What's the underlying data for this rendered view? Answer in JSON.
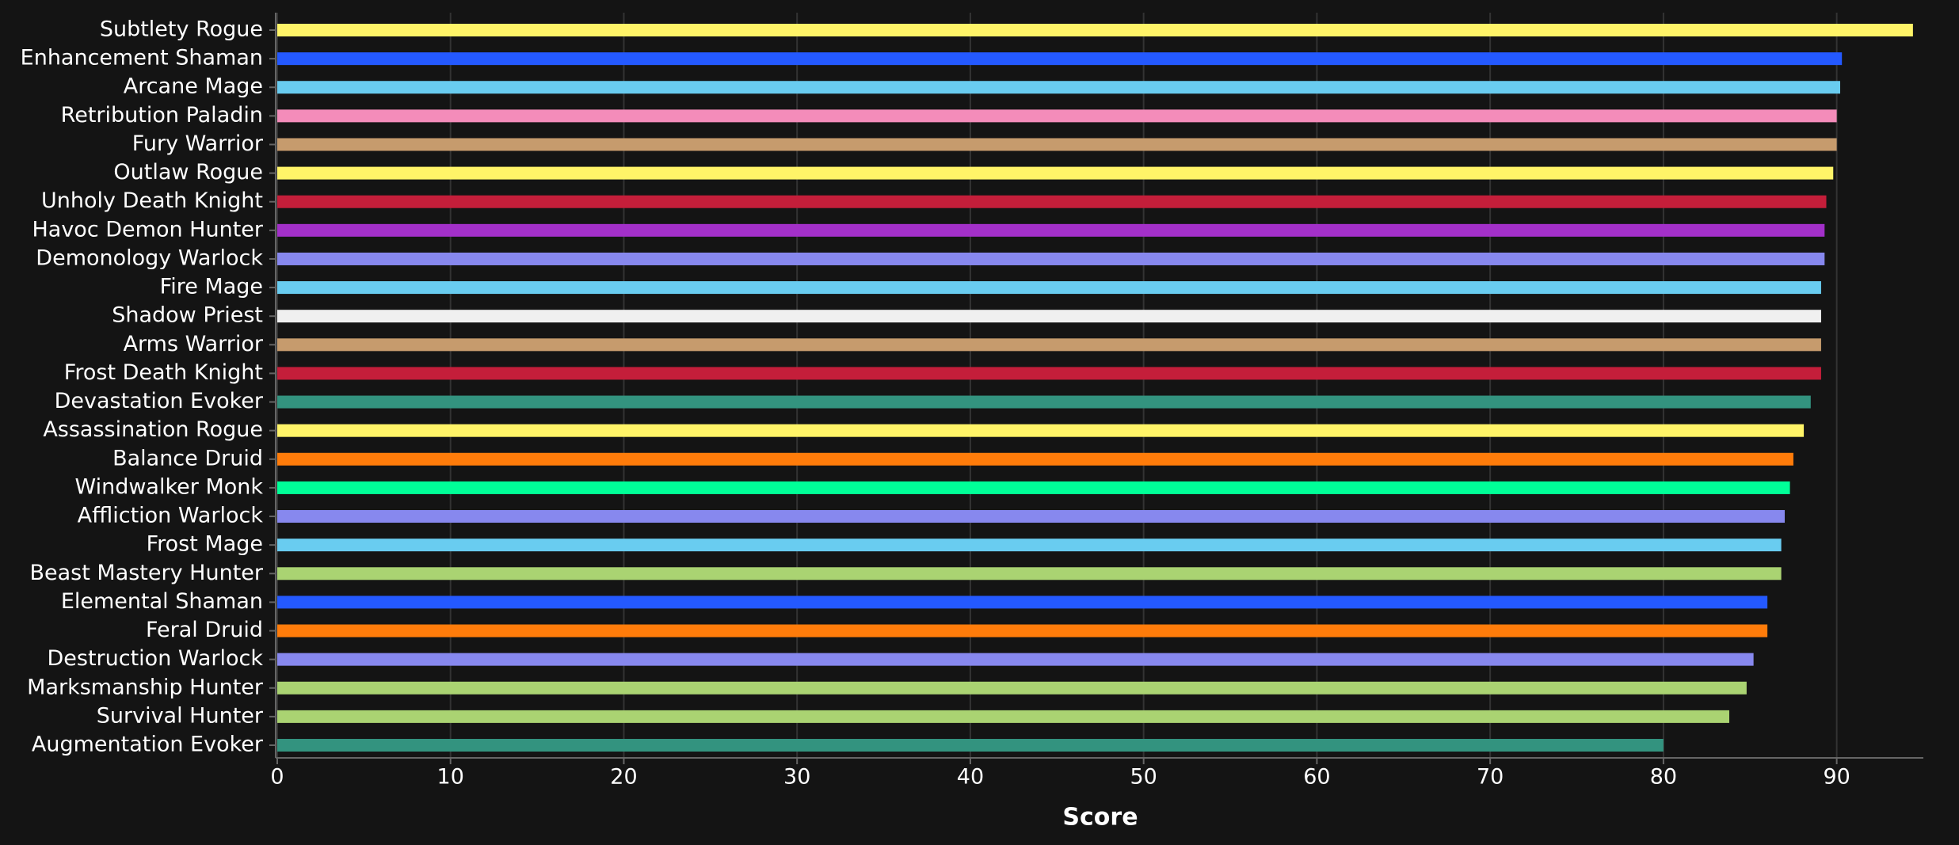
{
  "chart_data": {
    "type": "barh",
    "xlabel": "Score",
    "categories": [
      "Subtlety Rogue",
      "Enhancement Shaman",
      "Arcane Mage",
      "Retribution Paladin",
      "Fury Warrior",
      "Outlaw Rogue",
      "Unholy Death Knight",
      "Havoc Demon Hunter",
      "Demonology Warlock",
      "Fire Mage",
      "Shadow Priest",
      "Arms Warrior",
      "Frost Death Knight",
      "Devastation Evoker",
      "Assassination Rogue",
      "Balance Druid",
      "Windwalker Monk",
      "Affliction Warlock",
      "Frost Mage",
      "Beast Mastery Hunter",
      "Elemental Shaman",
      "Feral Druid",
      "Destruction Warlock",
      "Marksmanship Hunter",
      "Survival Hunter",
      "Augmentation Evoker"
    ],
    "values": [
      94.4,
      90.3,
      90.2,
      90.0,
      90.0,
      89.8,
      89.4,
      89.3,
      89.3,
      89.1,
      89.1,
      89.1,
      89.1,
      88.5,
      88.1,
      87.5,
      87.3,
      87.0,
      86.8,
      86.8,
      86.0,
      86.0,
      85.2,
      84.8,
      83.8,
      80.0
    ],
    "colors": [
      "#fff468",
      "#2459ff",
      "#69ccf0",
      "#f48cba",
      "#c69b6d",
      "#fff468",
      "#c41e3a",
      "#a330c9",
      "#8788ee",
      "#69ccf0",
      "#f0f0f0",
      "#c69b6d",
      "#c41e3a",
      "#33937f",
      "#fff468",
      "#ff7c0a",
      "#00ff98",
      "#8788ee",
      "#69ccf0",
      "#aad372",
      "#2459ff",
      "#ff7c0a",
      "#8788ee",
      "#aad372",
      "#aad372",
      "#33937f"
    ],
    "xlim": [
      0,
      95
    ],
    "xticks": [
      0,
      10,
      20,
      30,
      40,
      50,
      60,
      70,
      80,
      90
    ],
    "grid": true
  }
}
